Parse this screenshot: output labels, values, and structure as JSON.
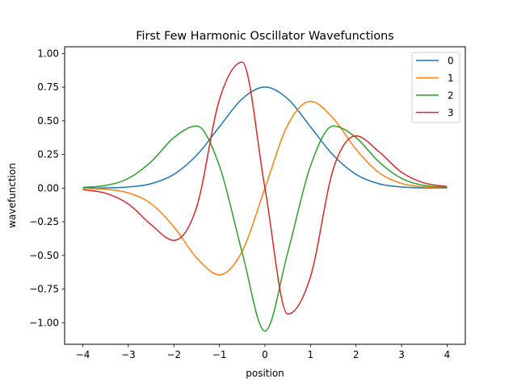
{
  "chart_data": {
    "type": "line",
    "title": "First Few Harmonic Oscillator Wavefunctions",
    "xlabel": "position",
    "ylabel": "wavefunction",
    "xlim": [
      -4.4,
      4.4
    ],
    "ylim": [
      -1.16,
      1.05
    ],
    "x_ticks": [
      -4,
      -3,
      -2,
      -1,
      0,
      1,
      2,
      3,
      4
    ],
    "x_tick_labels": [
      "−4",
      "−3",
      "−2",
      "−1",
      "0",
      "1",
      "2",
      "3",
      "4"
    ],
    "y_ticks": [
      -1.0,
      -0.75,
      -0.5,
      -0.25,
      0.0,
      0.25,
      0.5,
      0.75,
      1.0
    ],
    "y_tick_labels": [
      "−1.00",
      "−0.75",
      "−0.50",
      "−0.25",
      "0.00",
      "0.25",
      "0.50",
      "0.75",
      "1.00"
    ],
    "grid": false,
    "legend_position": "top-right",
    "x": [
      -4.0,
      -3.5,
      -3.0,
      -2.5,
      -2.0,
      -1.5,
      -1.0,
      -0.5,
      0.0,
      0.5,
      1.0,
      1.5,
      2.0,
      2.5,
      3.0,
      3.5,
      4.0
    ],
    "series": [
      {
        "name": "0",
        "color": "#1f77b4",
        "values": [
          0.0003,
          0.0016,
          0.0084,
          0.0328,
          0.1018,
          0.2442,
          0.4556,
          0.6633,
          0.7511,
          0.6633,
          0.4556,
          0.2442,
          0.1018,
          0.0328,
          0.0084,
          0.0016,
          0.0003
        ]
      },
      {
        "name": "1",
        "color": "#ff7f0e",
        "values": [
          -0.0019,
          -0.008,
          -0.0354,
          -0.1161,
          -0.288,
          -0.518,
          -0.6443,
          -0.469,
          0.0,
          0.469,
          0.6443,
          0.518,
          0.288,
          0.1161,
          0.0354,
          0.008,
          0.0019
        ]
      },
      {
        "name": "2",
        "color": "#2ca02c",
        "values": [
          0.0052,
          0.0196,
          0.0722,
          0.1959,
          0.3756,
          0.4612,
          0.1646,
          -0.4791,
          -1.0623,
          -0.4791,
          0.1646,
          0.4612,
          0.3756,
          0.1959,
          0.0722,
          0.0196,
          0.0052
        ]
      },
      {
        "name": "3",
        "color": "#d62728",
        "values": [
          -0.0112,
          -0.038,
          -0.1176,
          -0.2719,
          -0.388,
          -0.141,
          0.6575,
          0.9357,
          0.0,
          -0.9357,
          -0.6575,
          0.141,
          0.388,
          0.2719,
          0.1176,
          0.038,
          0.0112
        ]
      }
    ]
  }
}
